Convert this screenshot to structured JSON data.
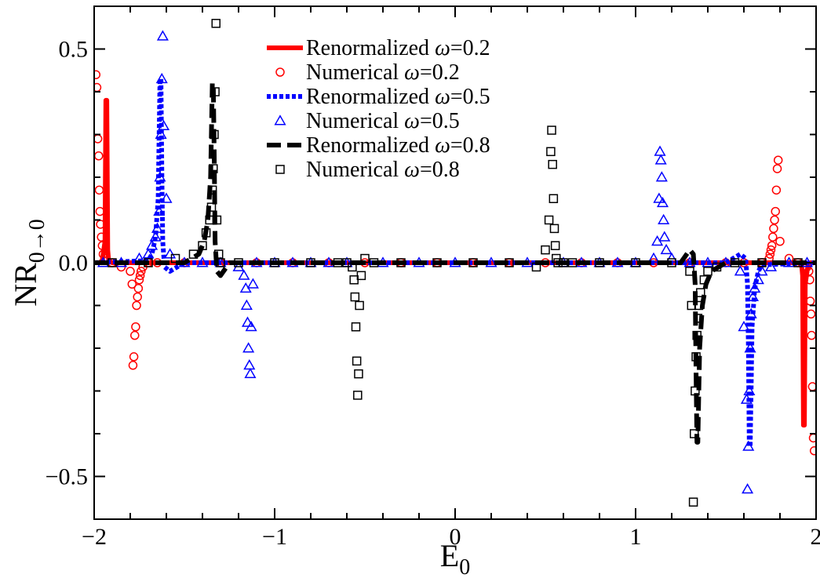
{
  "chart_data": {
    "type": "line",
    "title": "",
    "xlabel_main": "E",
    "xlabel_sub": "0",
    "ylabel_main": "NR",
    "ylabel_sub": "0→0",
    "xlim": [
      -2,
      2
    ],
    "ylim": [
      -0.6,
      0.6
    ],
    "x_ticks": [
      -2,
      -1,
      0,
      1,
      2
    ],
    "x_tick_labels": [
      "−2",
      "−1",
      "0",
      "1",
      "2"
    ],
    "y_ticks": [
      -0.5,
      0.0,
      0.5
    ],
    "y_tick_labels": [
      "−0.5",
      "0.0",
      "0.5"
    ],
    "grid": false,
    "legend_position": "top-center",
    "series": [
      {
        "name": "Renormalized ω=0.2",
        "legend_prefix": "Renormalized ",
        "legend_omega": "ω",
        "legend_suffix": "=0.2",
        "kind": "line",
        "color": "#ff0000",
        "dash": "solid",
        "width": 6,
        "x": [
          -2.0,
          -1.97,
          -1.955,
          -1.94,
          -1.935,
          -1.93,
          -1.925,
          -1.92,
          -1.9,
          -1.85,
          -1.8,
          -1.5,
          -1.0,
          -0.5,
          0.0,
          0.5,
          1.0,
          1.5,
          1.8,
          1.85,
          1.9,
          1.92,
          1.925,
          1.93,
          1.935,
          1.94,
          1.955,
          1.97,
          2.0
        ],
        "y": [
          0.0,
          0.0,
          0.005,
          0.05,
          0.38,
          0.38,
          0.03,
          0.005,
          0.0,
          0.0,
          0.0,
          0.0,
          0.0,
          0.0,
          0.0,
          0.0,
          0.0,
          0.0,
          0.0,
          0.0,
          0.0,
          -0.005,
          -0.03,
          -0.38,
          -0.38,
          -0.05,
          -0.005,
          0.0,
          0.0
        ]
      },
      {
        "name": "Numerical ω=0.2",
        "legend_prefix": "Numerical ",
        "legend_omega": "ω",
        "legend_suffix": "=0.2",
        "kind": "marker",
        "marker": "circle",
        "color": "#ff0000",
        "x": [
          -1.99,
          -1.985,
          -1.98,
          -1.975,
          -1.972,
          -1.968,
          -1.965,
          -1.96,
          -1.955,
          -1.95,
          -1.94,
          -1.9,
          -1.85,
          -1.8,
          -1.79,
          -1.785,
          -1.78,
          -1.775,
          -1.77,
          -1.765,
          -1.76,
          -1.755,
          -1.75,
          -1.745,
          -1.74,
          -1.73,
          -1.7,
          -1.65,
          -1.5,
          -1.3,
          -1.1,
          -0.9,
          -0.7,
          -0.5,
          -0.3,
          -0.1,
          0.1,
          0.3,
          0.5,
          0.7,
          0.9,
          1.1,
          1.3,
          1.5,
          1.6,
          1.7,
          1.74,
          1.745,
          1.75,
          1.755,
          1.76,
          1.765,
          1.77,
          1.775,
          1.78,
          1.785,
          1.79,
          1.8,
          1.85,
          1.9,
          1.95,
          1.96,
          1.965,
          1.968,
          1.972,
          1.975,
          1.98,
          1.985,
          1.99
        ],
        "y": [
          0.44,
          0.41,
          0.29,
          0.25,
          0.17,
          0.12,
          0.09,
          0.06,
          0.04,
          0.02,
          0.01,
          0.0,
          -0.01,
          -0.02,
          -0.05,
          -0.24,
          -0.22,
          -0.17,
          -0.15,
          -0.1,
          -0.08,
          -0.06,
          -0.04,
          -0.03,
          -0.02,
          -0.01,
          0.0,
          0.0,
          0.0,
          0.0,
          0.0,
          0.0,
          0.0,
          0.0,
          0.0,
          0.0,
          0.0,
          0.0,
          0.0,
          0.0,
          0.0,
          0.0,
          0.0,
          0.0,
          0.0,
          0.0,
          0.01,
          0.02,
          0.03,
          0.04,
          0.06,
          0.08,
          0.1,
          0.12,
          0.17,
          0.22,
          0.24,
          0.05,
          0.01,
          0.0,
          -0.01,
          -0.02,
          -0.04,
          -0.09,
          -0.12,
          -0.17,
          -0.29,
          -0.41,
          -0.44
        ]
      },
      {
        "name": "Renormalized ω=0.5",
        "legend_prefix": "Renormalized ",
        "legend_omega": "ω",
        "legend_suffix": "=0.5",
        "kind": "line",
        "color": "#0000ff",
        "dash": "dot",
        "width": 6,
        "x": [
          -2.0,
          -1.7,
          -1.68,
          -1.66,
          -1.645,
          -1.64,
          -1.635,
          -1.63,
          -1.625,
          -1.62,
          -1.61,
          -1.58,
          -1.5,
          -1.0,
          -0.5,
          0.0,
          0.5,
          1.0,
          1.5,
          1.58,
          1.61,
          1.62,
          1.625,
          1.63,
          1.635,
          1.64,
          1.645,
          1.66,
          1.68,
          1.7,
          2.0
        ],
        "y": [
          0.0,
          0.005,
          0.02,
          0.06,
          0.15,
          0.3,
          0.43,
          0.43,
          0.2,
          0.05,
          -0.01,
          -0.02,
          0.0,
          0.0,
          0.0,
          0.0,
          0.0,
          0.0,
          0.0,
          0.02,
          0.01,
          -0.05,
          -0.2,
          -0.43,
          -0.43,
          -0.3,
          -0.15,
          -0.06,
          -0.02,
          -0.005,
          0.0
        ]
      },
      {
        "name": "Numerical ω=0.5",
        "legend_prefix": "Numerical ",
        "legend_omega": "ω",
        "legend_suffix": "=0.5",
        "kind": "marker",
        "marker": "triangle",
        "color": "#0000ff",
        "x": [
          -1.95,
          -1.85,
          -1.75,
          -1.7,
          -1.68,
          -1.66,
          -1.65,
          -1.64,
          -1.635,
          -1.63,
          -1.625,
          -1.62,
          -1.615,
          -1.6,
          -1.58,
          -1.5,
          -1.4,
          -1.3,
          -1.2,
          -1.17,
          -1.16,
          -1.155,
          -1.15,
          -1.145,
          -1.14,
          -1.135,
          -1.13,
          -1.12,
          -1.1,
          -1.0,
          -0.9,
          -0.8,
          -0.7,
          -0.6,
          -0.4,
          -0.2,
          0.0,
          0.2,
          0.4,
          0.6,
          0.7,
          0.8,
          0.9,
          1.0,
          1.1,
          1.12,
          1.13,
          1.135,
          1.14,
          1.145,
          1.15,
          1.155,
          1.16,
          1.17,
          1.2,
          1.3,
          1.4,
          1.5,
          1.58,
          1.6,
          1.615,
          1.62,
          1.625,
          1.63,
          1.635,
          1.64,
          1.65,
          1.66,
          1.68,
          1.7,
          1.75,
          1.85,
          1.95
        ],
        "y": [
          0.0,
          0.0,
          0.01,
          0.02,
          0.04,
          0.06,
          0.08,
          0.12,
          0.2,
          0.3,
          0.43,
          0.53,
          0.32,
          0.15,
          0.02,
          0.0,
          0.0,
          0.0,
          -0.01,
          -0.03,
          -0.06,
          -0.1,
          -0.14,
          -0.2,
          -0.24,
          -0.26,
          -0.15,
          -0.05,
          0.0,
          0.0,
          0.0,
          0.0,
          0.0,
          0.0,
          0.0,
          0.0,
          0.0,
          0.0,
          0.0,
          0.0,
          0.0,
          0.0,
          0.0,
          0.0,
          0.01,
          0.05,
          0.15,
          0.26,
          0.24,
          0.2,
          0.14,
          0.1,
          0.06,
          0.03,
          0.01,
          0.0,
          0.0,
          0.0,
          -0.02,
          -0.15,
          -0.32,
          -0.53,
          -0.43,
          -0.3,
          -0.2,
          -0.12,
          -0.08,
          -0.06,
          -0.04,
          -0.02,
          -0.01,
          0.0,
          0.0
        ]
      },
      {
        "name": "Renormalized ω=0.8",
        "legend_prefix": "Renormalized ",
        "legend_omega": "ω",
        "legend_suffix": "=0.8",
        "kind": "line",
        "color": "#000000",
        "dash": "dash",
        "width": 6,
        "x": [
          -2.0,
          -1.5,
          -1.42,
          -1.39,
          -1.37,
          -1.355,
          -1.345,
          -1.34,
          -1.335,
          -1.33,
          -1.32,
          -1.3,
          -1.25,
          -1.0,
          -0.5,
          0.0,
          0.5,
          1.0,
          1.25,
          1.3,
          1.32,
          1.33,
          1.335,
          1.34,
          1.345,
          1.355,
          1.37,
          1.39,
          1.42,
          1.5,
          2.0
        ],
        "y": [
          0.0,
          0.0,
          0.02,
          0.05,
          0.1,
          0.2,
          0.42,
          0.42,
          0.25,
          0.05,
          -0.02,
          -0.03,
          0.0,
          0.0,
          0.0,
          0.0,
          0.0,
          0.0,
          0.0,
          0.03,
          0.02,
          -0.05,
          -0.25,
          -0.42,
          -0.42,
          -0.2,
          -0.1,
          -0.05,
          -0.02,
          0.0,
          0.0
        ]
      },
      {
        "name": "Numerical ω=0.8",
        "legend_prefix": "Numerical ",
        "legend_omega": "ω",
        "legend_suffix": "=0.8",
        "kind": "marker",
        "marker": "square",
        "color": "#000000",
        "x": [
          -1.9,
          -1.7,
          -1.55,
          -1.45,
          -1.4,
          -1.38,
          -1.36,
          -1.35,
          -1.345,
          -1.34,
          -1.335,
          -1.33,
          -1.325,
          -1.32,
          -1.31,
          -1.3,
          -1.2,
          -1.0,
          -0.8,
          -0.65,
          -0.6,
          -0.57,
          -0.56,
          -0.555,
          -0.55,
          -0.545,
          -0.54,
          -0.535,
          -0.53,
          -0.52,
          -0.5,
          -0.45,
          -0.3,
          -0.1,
          0.1,
          0.3,
          0.45,
          0.5,
          0.52,
          0.53,
          0.535,
          0.54,
          0.545,
          0.55,
          0.555,
          0.56,
          0.57,
          0.6,
          0.65,
          0.8,
          1.0,
          1.2,
          1.3,
          1.31,
          1.32,
          1.325,
          1.33,
          1.335,
          1.34,
          1.345,
          1.35,
          1.36,
          1.38,
          1.4,
          1.45,
          1.55,
          1.7,
          1.9
        ],
        "y": [
          0.0,
          0.0,
          0.01,
          0.02,
          0.04,
          0.07,
          0.1,
          0.13,
          0.17,
          0.22,
          0.3,
          0.4,
          0.56,
          0.1,
          0.02,
          0.0,
          0.0,
          0.0,
          0.0,
          0.0,
          0.0,
          -0.01,
          -0.04,
          -0.08,
          -0.15,
          -0.23,
          -0.31,
          -0.26,
          -0.1,
          -0.03,
          0.01,
          0.0,
          0.0,
          0.0,
          0.0,
          0.0,
          -0.01,
          0.03,
          0.1,
          0.26,
          0.31,
          0.23,
          0.15,
          0.08,
          0.04,
          0.01,
          0.0,
          0.0,
          0.0,
          0.0,
          0.0,
          0.0,
          -0.02,
          -0.1,
          -0.56,
          -0.4,
          -0.3,
          -0.22,
          -0.17,
          -0.13,
          -0.1,
          -0.07,
          -0.04,
          -0.02,
          -0.01,
          0.0,
          0.0,
          0.0
        ]
      }
    ]
  }
}
